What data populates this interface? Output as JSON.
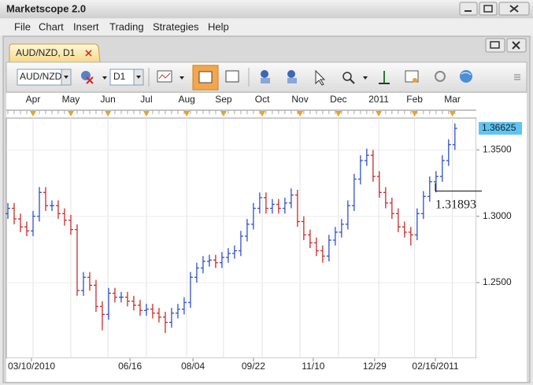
{
  "window": {
    "title": "Marketscope 2.0"
  },
  "menu": [
    "File",
    "Chart",
    "Insert",
    "Trading",
    "Strategies",
    "Help"
  ],
  "tab": {
    "label": "AUD/NZD, D1"
  },
  "toolbar": {
    "instrument": "AUD/NZD",
    "timeframe": "D1"
  },
  "chart_data": {
    "type": "ohlc",
    "up_color": "#2f4fd0",
    "down_color": "#d02828",
    "open": [
      1.302,
      1.306,
      1.298,
      1.292,
      1.289,
      1.3,
      1.318,
      1.308,
      1.308,
      1.302,
      1.297,
      1.29,
      1.244,
      1.254,
      1.248,
      1.232,
      1.226,
      1.242,
      1.239,
      1.239,
      1.236,
      1.233,
      1.229,
      1.23,
      1.227,
      1.224,
      1.22,
      1.227,
      1.23,
      1.235,
      1.254,
      1.261,
      1.266,
      1.267,
      1.265,
      1.269,
      1.272,
      1.274,
      1.285,
      1.294,
      1.306,
      1.314,
      1.306,
      1.309,
      1.306,
      1.31,
      1.316,
      1.296,
      1.286,
      1.28,
      1.274,
      1.27,
      1.282,
      1.288,
      1.294,
      1.308,
      1.328,
      1.342,
      1.346,
      1.33,
      1.318,
      1.31,
      1.302,
      1.292,
      1.288,
      1.286,
      1.302,
      1.315,
      1.326,
      1.33,
      1.342,
      1.354
    ],
    "high": [
      1.31,
      1.31,
      1.302,
      1.296,
      1.304,
      1.322,
      1.322,
      1.312,
      1.312,
      1.306,
      1.301,
      1.294,
      1.258,
      1.258,
      1.252,
      1.236,
      1.246,
      1.246,
      1.243,
      1.243,
      1.24,
      1.237,
      1.234,
      1.234,
      1.231,
      1.228,
      1.231,
      1.234,
      1.239,
      1.258,
      1.265,
      1.27,
      1.271,
      1.271,
      1.273,
      1.276,
      1.278,
      1.289,
      1.298,
      1.31,
      1.318,
      1.318,
      1.313,
      1.313,
      1.314,
      1.321,
      1.32,
      1.3,
      1.29,
      1.284,
      1.278,
      1.286,
      1.292,
      1.298,
      1.312,
      1.332,
      1.346,
      1.351,
      1.35,
      1.334,
      1.322,
      1.314,
      1.306,
      1.296,
      1.292,
      1.306,
      1.319,
      1.33,
      1.334,
      1.346,
      1.358,
      1.37
    ],
    "low": [
      1.298,
      1.294,
      1.288,
      1.285,
      1.285,
      1.296,
      1.304,
      1.304,
      1.298,
      1.293,
      1.286,
      1.24,
      1.24,
      1.244,
      1.228,
      1.214,
      1.222,
      1.235,
      1.235,
      1.232,
      1.229,
      1.225,
      1.225,
      1.223,
      1.22,
      1.212,
      1.216,
      1.223,
      1.226,
      1.231,
      1.25,
      1.257,
      1.262,
      1.261,
      1.261,
      1.265,
      1.268,
      1.27,
      1.281,
      1.29,
      1.302,
      1.302,
      1.302,
      1.302,
      1.302,
      1.306,
      1.292,
      1.282,
      1.276,
      1.27,
      1.265,
      1.266,
      1.278,
      1.284,
      1.29,
      1.304,
      1.324,
      1.338,
      1.326,
      1.314,
      1.306,
      1.298,
      1.288,
      1.284,
      1.278,
      1.282,
      1.298,
      1.311,
      1.318,
      1.326,
      1.338,
      1.35
    ],
    "close": [
      1.306,
      1.298,
      1.292,
      1.289,
      1.3,
      1.318,
      1.308,
      1.308,
      1.302,
      1.297,
      1.29,
      1.244,
      1.254,
      1.248,
      1.232,
      1.226,
      1.242,
      1.239,
      1.239,
      1.236,
      1.233,
      1.229,
      1.23,
      1.227,
      1.224,
      1.22,
      1.227,
      1.23,
      1.235,
      1.254,
      1.261,
      1.266,
      1.267,
      1.265,
      1.269,
      1.272,
      1.274,
      1.285,
      1.294,
      1.306,
      1.314,
      1.306,
      1.309,
      1.306,
      1.31,
      1.316,
      1.296,
      1.286,
      1.28,
      1.274,
      1.27,
      1.282,
      1.288,
      1.294,
      1.308,
      1.328,
      1.342,
      1.346,
      1.33,
      1.318,
      1.31,
      1.302,
      1.292,
      1.288,
      1.286,
      1.302,
      1.315,
      1.326,
      1.33,
      1.342,
      1.354,
      1.36625
    ],
    "xlim": [
      -0.25,
      74.4
    ],
    "ylim": [
      1.193,
      1.374
    ],
    "yticks": [
      {
        "value": 1.25,
        "label": "1.2500"
      },
      {
        "value": 1.3,
        "label": "1.3000"
      },
      {
        "value": 1.35,
        "label": "1.3500"
      }
    ],
    "xticks": [
      {
        "value": 3.75,
        "label": "03/10/2010"
      },
      {
        "value": 19.4,
        "label": "06/16"
      },
      {
        "value": 29.4,
        "label": "08/04"
      },
      {
        "value": 39,
        "label": "09/22"
      },
      {
        "value": 48.5,
        "label": "11/10"
      },
      {
        "value": 58.25,
        "label": "12/29"
      },
      {
        "value": 67.9,
        "label": "02/16/2011"
      }
    ],
    "month_ticks": [
      {
        "value": 4,
        "label": "Apr"
      },
      {
        "value": 10,
        "label": "May"
      },
      {
        "value": 15.9,
        "label": "Jun"
      },
      {
        "value": 22,
        "label": "Jul"
      },
      {
        "value": 28.4,
        "label": "Aug"
      },
      {
        "value": 34.25,
        "label": "Sep"
      },
      {
        "value": 40.4,
        "label": "Oct"
      },
      {
        "value": 46.4,
        "label": "Nov"
      },
      {
        "value": 52.5,
        "label": "Dec"
      },
      {
        "value": 58.9,
        "label": "2011"
      },
      {
        "value": 64.6,
        "label": "Feb"
      },
      {
        "value": 70.6,
        "label": "Mar"
      }
    ],
    "crosshair_price": 1.31893,
    "last_price_color": "#5ec4f2",
    "grid": true
  }
}
